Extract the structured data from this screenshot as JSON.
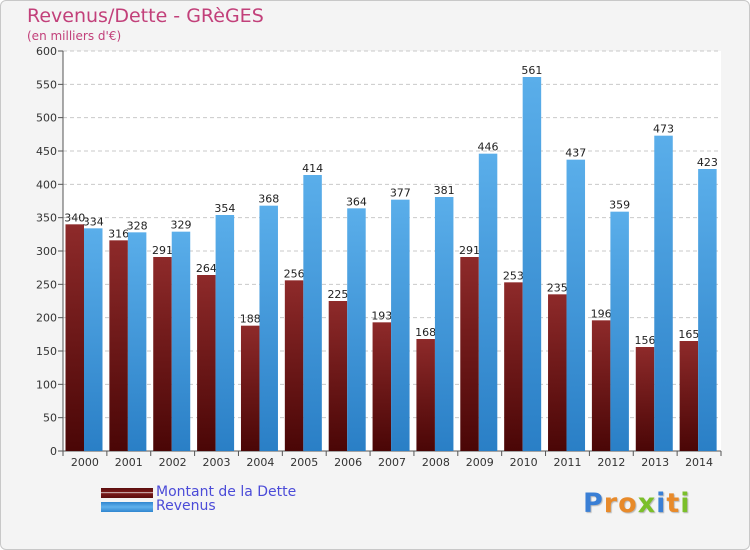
{
  "header": {
    "title": "Revenus/Dette - GRèGES",
    "subtitle": "(en milliers d'€)"
  },
  "chart_data": {
    "type": "bar",
    "title": "Revenus/Dette - GRèGES",
    "ylabel": "(en milliers d'€)",
    "xlabel": "",
    "categories": [
      "2000",
      "2001",
      "2002",
      "2003",
      "2004",
      "2005",
      "2006",
      "2007",
      "2008",
      "2009",
      "2010",
      "2011",
      "2012",
      "2013",
      "2014"
    ],
    "series": [
      {
        "name": "Montant de la Dette",
        "color": "#7a1a1a",
        "values": [
          340,
          316,
          291,
          264,
          188,
          256,
          225,
          193,
          168,
          291,
          253,
          235,
          196,
          156,
          165
        ]
      },
      {
        "name": "Revenus",
        "color": "#4fa3e3",
        "values": [
          334,
          328,
          329,
          354,
          368,
          414,
          364,
          377,
          381,
          446,
          561,
          437,
          359,
          473,
          423
        ]
      }
    ],
    "ylim": [
      0,
      600
    ],
    "yticks": [
      0,
      50,
      100,
      150,
      200,
      250,
      300,
      350,
      400,
      450,
      500,
      550,
      600
    ],
    "grid": true,
    "legend_position": "bottom-left"
  },
  "legend": {
    "items": [
      {
        "label": "Montant de la Dette",
        "color": "#7a1a1a"
      },
      {
        "label": "Revenus",
        "color": "#4fa3e3"
      }
    ]
  },
  "logo": {
    "letters": [
      "P",
      "r",
      "o",
      "x",
      "i",
      "t",
      "i"
    ],
    "colors": [
      "#3a7fd5",
      "#e88a2a",
      "#e88a2a",
      "#7bbf2a",
      "#3a7fd5",
      "#e88a2a",
      "#7bbf2a"
    ]
  }
}
